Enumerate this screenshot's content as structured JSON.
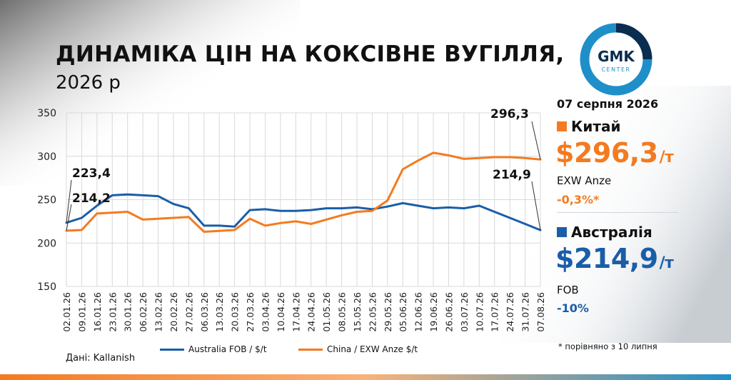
{
  "header": {
    "title": "ДИНАМІКА ЦІН НА КОКСІВНЕ ВУГІЛЛЯ,",
    "subtitle": "2026 р"
  },
  "watermark": "gmk.center",
  "source": "Дані: Kallanish",
  "footnote": "* порівняно з 10 липня",
  "logo": {
    "line1": "GMK",
    "line2": "CENTER"
  },
  "panel": {
    "date": "07 серпня 2026",
    "china": {
      "name": "Китай",
      "price": "$296,3",
      "unit": "/т",
      "basis": "EXW Anze",
      "change": "-0,3%*"
    },
    "australia": {
      "name": "Австралія",
      "price": "$214,9",
      "unit": "/т",
      "basis": "FOB",
      "change": "-10%"
    }
  },
  "colors": {
    "australia": "#1a5ea8",
    "china": "#f47a20",
    "china_text": "#f47a20",
    "australia_text": "#1a5ea8",
    "grid": "#d9d9d9"
  },
  "chart_data": {
    "type": "line",
    "x": [
      "02.01.26",
      "09.01.26",
      "16.01.26",
      "23.01.26",
      "30.01.26",
      "06.02.26",
      "13.02.26",
      "20.02.26",
      "27.02.26",
      "06.03.26",
      "13.03.26",
      "20.03.26",
      "27.03.26",
      "03.04.26",
      "10.04.26",
      "17.04.26",
      "24.04.26",
      "01.05.26",
      "08.05.26",
      "15.05.26",
      "22.05.26",
      "29.05.26",
      "05.06.26",
      "12.06.26",
      "19.06.26",
      "26.06.26",
      "03.07.26",
      "10.07.26",
      "17.07.26",
      "24.07.26",
      "31.07.26",
      "07.08.26"
    ],
    "series": [
      {
        "name": "Australia FOB / $/t",
        "color": "#1a5ea8",
        "values": [
          223.4,
          229,
          243,
          255,
          256,
          255,
          254,
          245,
          240,
          220,
          220,
          219,
          238,
          239,
          237,
          237,
          238,
          240,
          240,
          241,
          239,
          242,
          246,
          243,
          240,
          241,
          240,
          243,
          236,
          229,
          222,
          214.9
        ]
      },
      {
        "name": "China / EXW Anze $/t",
        "color": "#f47a20",
        "values": [
          214.2,
          215,
          234,
          235,
          236,
          227,
          228,
          229,
          230,
          213,
          214,
          215,
          228,
          220,
          223,
          225,
          222,
          227,
          232,
          236,
          237,
          249,
          285,
          295,
          304,
          301,
          297,
          298,
          299,
          299,
          298,
          296.3
        ]
      }
    ],
    "ylim": [
      150,
      350
    ],
    "yticks": [
      150,
      200,
      250,
      300,
      350
    ],
    "annotations": [
      {
        "text": "223,4",
        "x": "02.01.26",
        "y": 223.4
      },
      {
        "text": "214,2",
        "x": "02.01.26",
        "y": 214.2
      },
      {
        "text": "296,3",
        "x": "07.08.26",
        "y": 296.3
      },
      {
        "text": "214,9",
        "x": "07.08.26",
        "y": 214.9
      }
    ],
    "title": "ДИНАМІКА ЦІН НА КОКСІВНЕ ВУГІЛЛЯ, 2026 р",
    "xlabel": "",
    "ylabel": "",
    "grid": true,
    "legend": "bottom"
  }
}
